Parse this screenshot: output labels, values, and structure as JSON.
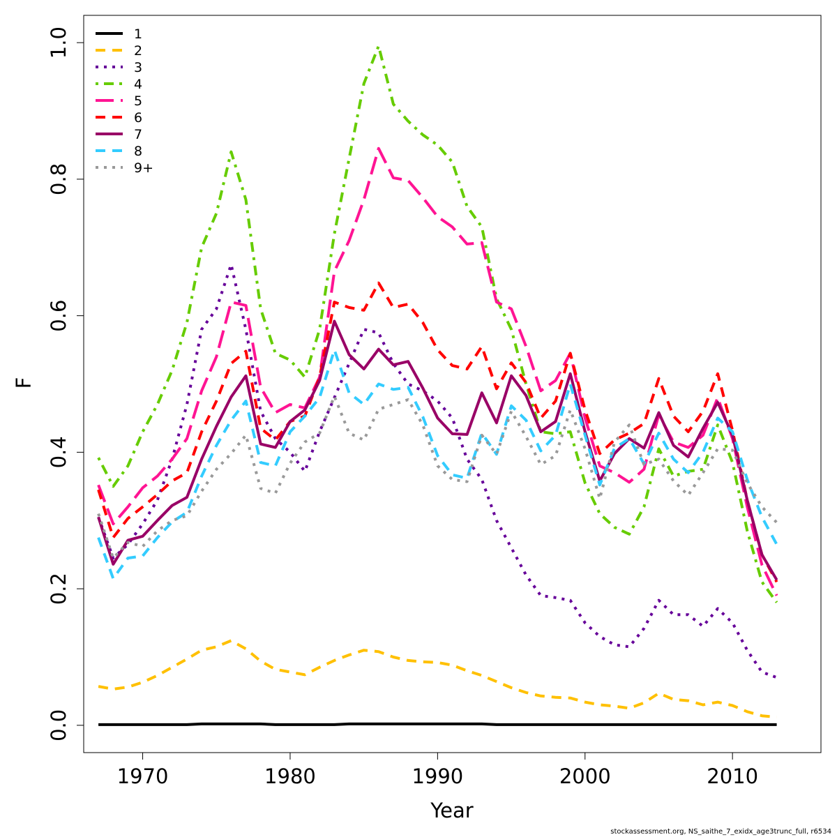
{
  "chart_data": {
    "type": "line",
    "xlabel": "Year",
    "ylabel": "F",
    "xlim": [
      1966,
      2016
    ],
    "ylim": [
      -0.04,
      1.04
    ],
    "x_ticks": [
      1970,
      1980,
      1990,
      2000,
      2010
    ],
    "y_ticks": [
      0.0,
      0.2,
      0.4,
      0.6,
      0.8,
      1.0
    ],
    "x_tick_labels": [
      "1970",
      "1980",
      "1990",
      "2000",
      "2010"
    ],
    "y_tick_labels": [
      "0.0",
      "0.2",
      "0.4",
      "0.6",
      "0.8",
      "1.0"
    ],
    "legend_position": "top-left",
    "grid": false,
    "x": [
      1967,
      1968,
      1969,
      1970,
      1971,
      1972,
      1973,
      1974,
      1975,
      1976,
      1977,
      1978,
      1979,
      1980,
      1981,
      1982,
      1983,
      1984,
      1985,
      1986,
      1987,
      1988,
      1989,
      1990,
      1991,
      1992,
      1993,
      1994,
      1995,
      1996,
      1997,
      1998,
      1999,
      2000,
      2001,
      2002,
      2003,
      2004,
      2005,
      2006,
      2007,
      2008,
      2009,
      2010,
      2011,
      2012,
      2013
    ],
    "series": [
      {
        "name": "1",
        "color": "#000000",
        "dash": "solid",
        "values": [
          0.001,
          0.001,
          0.001,
          0.001,
          0.001,
          0.001,
          0.001,
          0.002,
          0.002,
          0.002,
          0.002,
          0.002,
          0.001,
          0.001,
          0.001,
          0.001,
          0.001,
          0.002,
          0.002,
          0.002,
          0.002,
          0.002,
          0.002,
          0.002,
          0.002,
          0.002,
          0.002,
          0.001,
          0.001,
          0.001,
          0.001,
          0.001,
          0.001,
          0.001,
          0.001,
          0.001,
          0.001,
          0.001,
          0.001,
          0.001,
          0.001,
          0.001,
          0.001,
          0.001,
          0.001,
          0.001,
          0.001
        ]
      },
      {
        "name": "2",
        "color": "#FFC000",
        "dash": "dash",
        "values": [
          0.057,
          0.053,
          0.056,
          0.063,
          0.073,
          0.085,
          0.097,
          0.11,
          0.115,
          0.124,
          0.112,
          0.094,
          0.082,
          0.078,
          0.074,
          0.085,
          0.095,
          0.103,
          0.11,
          0.108,
          0.1,
          0.095,
          0.093,
          0.092,
          0.088,
          0.08,
          0.073,
          0.064,
          0.055,
          0.048,
          0.043,
          0.041,
          0.04,
          0.034,
          0.03,
          0.028,
          0.025,
          0.033,
          0.047,
          0.038,
          0.036,
          0.03,
          0.034,
          0.029,
          0.02,
          0.014,
          0.012
        ]
      },
      {
        "name": "3",
        "color": "#660099",
        "dash": "dot",
        "values": [
          0.305,
          0.245,
          0.265,
          0.295,
          0.33,
          0.39,
          0.47,
          0.58,
          0.61,
          0.675,
          0.58,
          0.46,
          0.42,
          0.4,
          0.372,
          0.43,
          0.48,
          0.53,
          0.58,
          0.575,
          0.53,
          0.5,
          0.49,
          0.475,
          0.45,
          0.39,
          0.36,
          0.3,
          0.26,
          0.22,
          0.19,
          0.187,
          0.183,
          0.15,
          0.13,
          0.118,
          0.115,
          0.142,
          0.183,
          0.162,
          0.162,
          0.145,
          0.171,
          0.15,
          0.11,
          0.078,
          0.07
        ]
      },
      {
        "name": "4",
        "color": "#66CC00",
        "dash": "dashdot",
        "values": [
          0.392,
          0.35,
          0.38,
          0.43,
          0.47,
          0.52,
          0.59,
          0.7,
          0.75,
          0.84,
          0.77,
          0.61,
          0.545,
          0.535,
          0.51,
          0.58,
          0.72,
          0.83,
          0.94,
          0.995,
          0.91,
          0.885,
          0.865,
          0.85,
          0.825,
          0.76,
          0.73,
          0.625,
          0.58,
          0.5,
          0.43,
          0.427,
          0.43,
          0.355,
          0.31,
          0.29,
          0.28,
          0.32,
          0.405,
          0.365,
          0.372,
          0.375,
          0.44,
          0.385,
          0.285,
          0.21,
          0.18
        ]
      },
      {
        "name": "5",
        "color": "#FF1493",
        "dash": "longdash",
        "values": [
          0.352,
          0.295,
          0.32,
          0.348,
          0.365,
          0.39,
          0.42,
          0.49,
          0.54,
          0.62,
          0.615,
          0.495,
          0.458,
          0.47,
          0.465,
          0.51,
          0.665,
          0.71,
          0.77,
          0.845,
          0.802,
          0.798,
          0.773,
          0.745,
          0.73,
          0.705,
          0.707,
          0.62,
          0.61,
          0.555,
          0.49,
          0.505,
          0.545,
          0.45,
          0.38,
          0.37,
          0.356,
          0.375,
          0.455,
          0.415,
          0.407,
          0.425,
          0.48,
          0.42,
          0.32,
          0.235,
          0.19
        ]
      },
      {
        "name": "6",
        "color": "#FF0000",
        "dash": "dash",
        "values": [
          0.345,
          0.275,
          0.303,
          0.32,
          0.338,
          0.358,
          0.37,
          0.43,
          0.475,
          0.53,
          0.548,
          0.435,
          0.418,
          0.445,
          0.453,
          0.51,
          0.62,
          0.612,
          0.608,
          0.648,
          0.612,
          0.617,
          0.59,
          0.55,
          0.527,
          0.522,
          0.555,
          0.493,
          0.531,
          0.502,
          0.45,
          0.475,
          0.545,
          0.462,
          0.398,
          0.418,
          0.428,
          0.442,
          0.508,
          0.453,
          0.43,
          0.46,
          0.515,
          0.432,
          0.33,
          0.25,
          0.21
        ]
      },
      {
        "name": "7",
        "color": "#990066",
        "dash": "solid",
        "values": [
          0.305,
          0.236,
          0.271,
          0.277,
          0.3,
          0.322,
          0.334,
          0.39,
          0.438,
          0.481,
          0.512,
          0.412,
          0.407,
          0.445,
          0.462,
          0.505,
          0.592,
          0.543,
          0.522,
          0.551,
          0.528,
          0.533,
          0.494,
          0.45,
          0.427,
          0.426,
          0.487,
          0.443,
          0.512,
          0.483,
          0.43,
          0.445,
          0.515,
          0.43,
          0.358,
          0.398,
          0.42,
          0.406,
          0.458,
          0.41,
          0.393,
          0.435,
          0.473,
          0.425,
          0.33,
          0.25,
          0.213
        ]
      },
      {
        "name": "8",
        "color": "#33CCFF",
        "dash": "dash",
        "values": [
          0.275,
          0.215,
          0.245,
          0.248,
          0.275,
          0.298,
          0.312,
          0.365,
          0.41,
          0.447,
          0.475,
          0.385,
          0.38,
          0.43,
          0.453,
          0.48,
          0.55,
          0.487,
          0.47,
          0.5,
          0.492,
          0.495,
          0.452,
          0.395,
          0.367,
          0.362,
          0.428,
          0.397,
          0.468,
          0.447,
          0.402,
          0.425,
          0.5,
          0.425,
          0.352,
          0.406,
          0.42,
          0.383,
          0.428,
          0.39,
          0.37,
          0.4,
          0.45,
          0.43,
          0.36,
          0.305,
          0.265
        ]
      },
      {
        "name": "9+",
        "color": "#999999",
        "dash": "dot",
        "values": [
          0.31,
          0.245,
          0.268,
          0.262,
          0.285,
          0.3,
          0.307,
          0.343,
          0.375,
          0.398,
          0.425,
          0.347,
          0.34,
          0.384,
          0.415,
          0.428,
          0.482,
          0.428,
          0.418,
          0.463,
          0.47,
          0.477,
          0.44,
          0.38,
          0.36,
          0.357,
          0.425,
          0.397,
          0.46,
          0.423,
          0.382,
          0.395,
          0.462,
          0.405,
          0.332,
          0.415,
          0.44,
          0.382,
          0.39,
          0.358,
          0.337,
          0.37,
          0.405,
          0.403,
          0.355,
          0.32,
          0.297
        ]
      }
    ]
  },
  "footer": "stockassessment.org, NS_saithe_7_exidx_age3trunc_full, r6534"
}
